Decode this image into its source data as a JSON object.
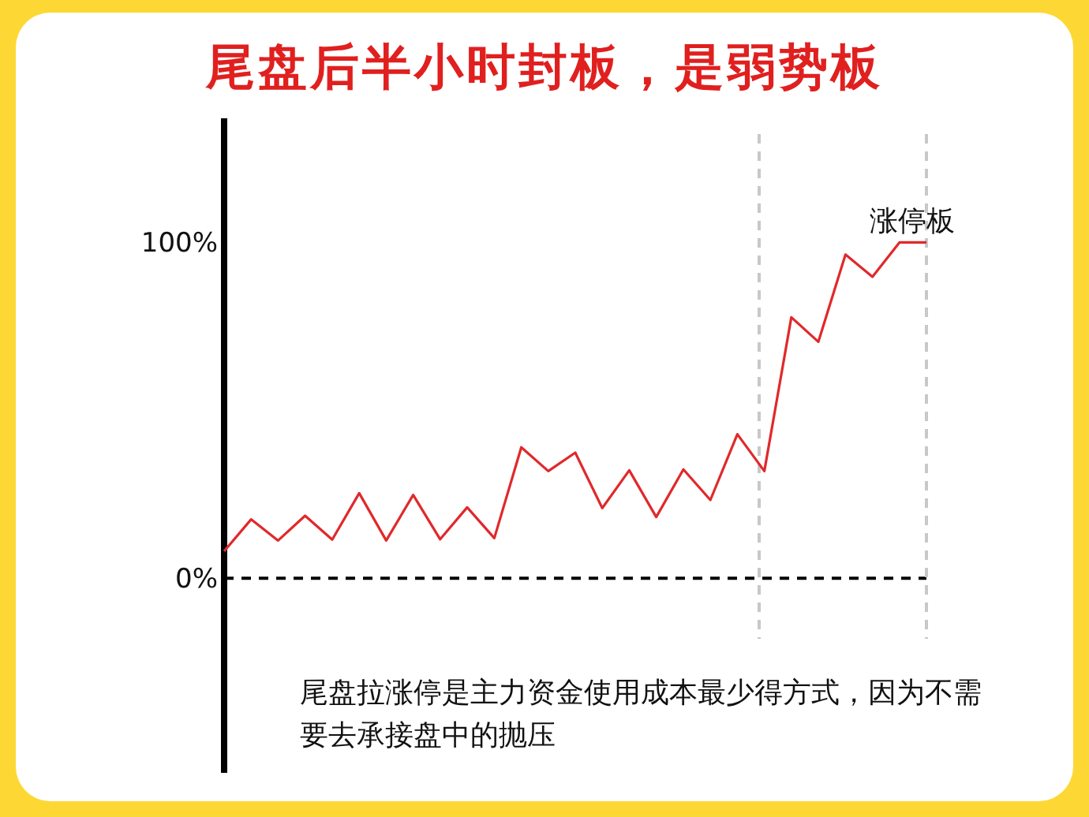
{
  "chart_data": {
    "type": "line",
    "title": "尾盘后半小时封板，是弱势板",
    "categories": [
      null,
      null,
      null,
      null,
      null,
      null,
      null,
      null,
      null,
      null,
      null,
      null,
      null,
      null,
      null,
      null,
      null,
      null,
      null,
      null,
      null,
      null,
      null,
      null,
      null,
      null,
      null
    ],
    "series": [
      {
        "color": "#e0292b",
        "values": [
          8,
          17.5,
          11.2,
          18.6,
          11.5,
          25.3,
          11.2,
          24.8,
          11.6,
          21.1,
          11.9,
          39,
          31.9,
          37.4,
          20.9,
          32.1,
          18.2,
          32.4,
          23.3,
          42.9,
          31.9,
          77.7,
          70.4,
          96.4,
          89.8,
          100,
          100
        ]
      }
    ],
    "ylim": [
      -58,
      137
    ],
    "yticks": [
      {
        "value": 0,
        "label": "0%"
      },
      {
        "value": 100,
        "label": "100%"
      }
    ],
    "tick_labels": "y",
    "ref_lines": [
      {
        "axis": "y",
        "value": 0,
        "color": "#000000",
        "line_style": "dashed"
      }
    ],
    "annotations": [
      "涨停板",
      "尾盘拉涨停是主力资金使用成本最少得方式，因为不需要去承接盘中的抛压"
    ]
  }
}
